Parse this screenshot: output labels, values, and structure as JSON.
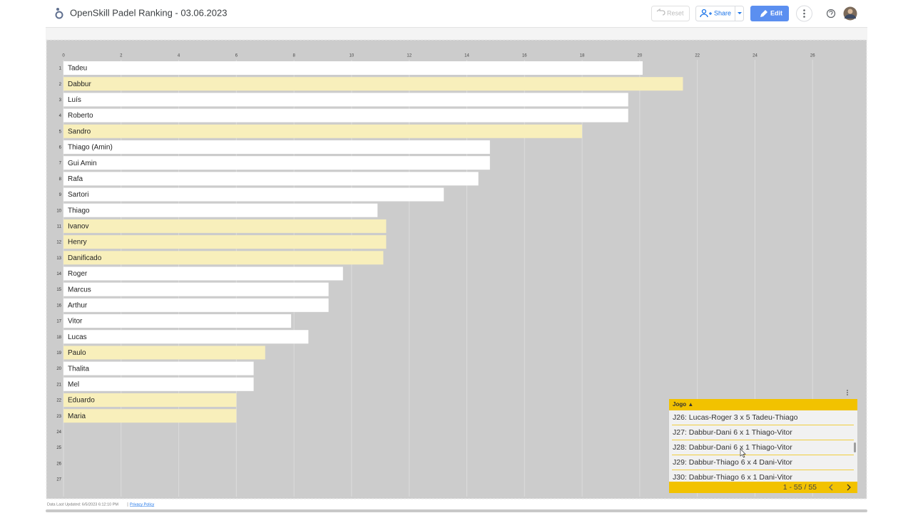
{
  "header": {
    "title": "OpenSkill Padel Ranking - 03.06.2023",
    "reset": "Reset",
    "share": "Share",
    "edit": "Edit"
  },
  "chart_data": {
    "type": "bar",
    "orientation": "horizontal",
    "row_numbers": [
      1,
      2,
      3,
      4,
      5,
      6,
      7,
      8,
      9,
      10,
      11,
      12,
      13,
      14,
      15,
      16,
      17,
      18,
      19,
      20,
      21,
      22,
      23,
      24,
      25,
      26,
      27
    ],
    "categories": [
      "Tadeu",
      "Dabbur",
      "Luís",
      "Roberto",
      "Sandro",
      "Thiago (Amin)",
      "Gui Amin",
      "Rafa",
      "Sartori",
      "Thiago",
      "Ivanov",
      "Henry",
      "Danificado",
      "Roger",
      "Marcus",
      "Arthur",
      "Vitor",
      "Lucas",
      "Paulo",
      "Thalita",
      "Mel",
      "Eduardo",
      "Maria",
      null,
      null,
      null,
      null
    ],
    "values": [
      20.1,
      21.5,
      19.6,
      19.6,
      18.0,
      14.8,
      14.8,
      14.4,
      13.2,
      10.9,
      11.2,
      11.2,
      11.1,
      9.7,
      9.2,
      9.2,
      7.9,
      8.5,
      7.0,
      6.6,
      6.6,
      6.0,
      6.0,
      null,
      null,
      null,
      null
    ],
    "colors": [
      "#ffffff",
      "#f8efbb",
      "#ffffff",
      "#ffffff",
      "#f8efbb",
      "#ffffff",
      "#ffffff",
      "#ffffff",
      "#ffffff",
      "#ffffff",
      "#f8efbb",
      "#f8efbb",
      "#f8efbb",
      "#ffffff",
      "#ffffff",
      "#ffffff",
      "#ffffff",
      "#ffffff",
      "#f8efbb",
      "#ffffff",
      "#ffffff",
      "#f8efbb",
      "#f8efbb",
      null,
      null,
      null,
      null
    ],
    "xlim": [
      0,
      27.9
    ],
    "xticks": [
      0,
      2,
      4,
      6,
      8,
      10,
      12,
      14,
      16,
      18,
      20,
      22,
      24,
      26
    ],
    "grid": true
  },
  "table": {
    "header": "Jogo ▲",
    "rows": [
      "J26: Lucas-Roger 3 x 5 Tadeu-Thiago",
      "J27: Dabbur-Dani 6 x 1 Thiago-Vitor",
      "J28: Dabbur-Dani 6 x 1 Thiago-Vitor",
      "J29: Dabbur-Thiago 6 x 4 Dani-Vitor",
      "J30: Dabbur-Thiago 6 x 1 Dani-Vitor"
    ],
    "pagination": "1 - 55 / 55"
  },
  "footer": {
    "last_updated": "Data Last Updated: 6/5/2023 6:12:10 PM",
    "privacy": "Privacy Policy"
  }
}
